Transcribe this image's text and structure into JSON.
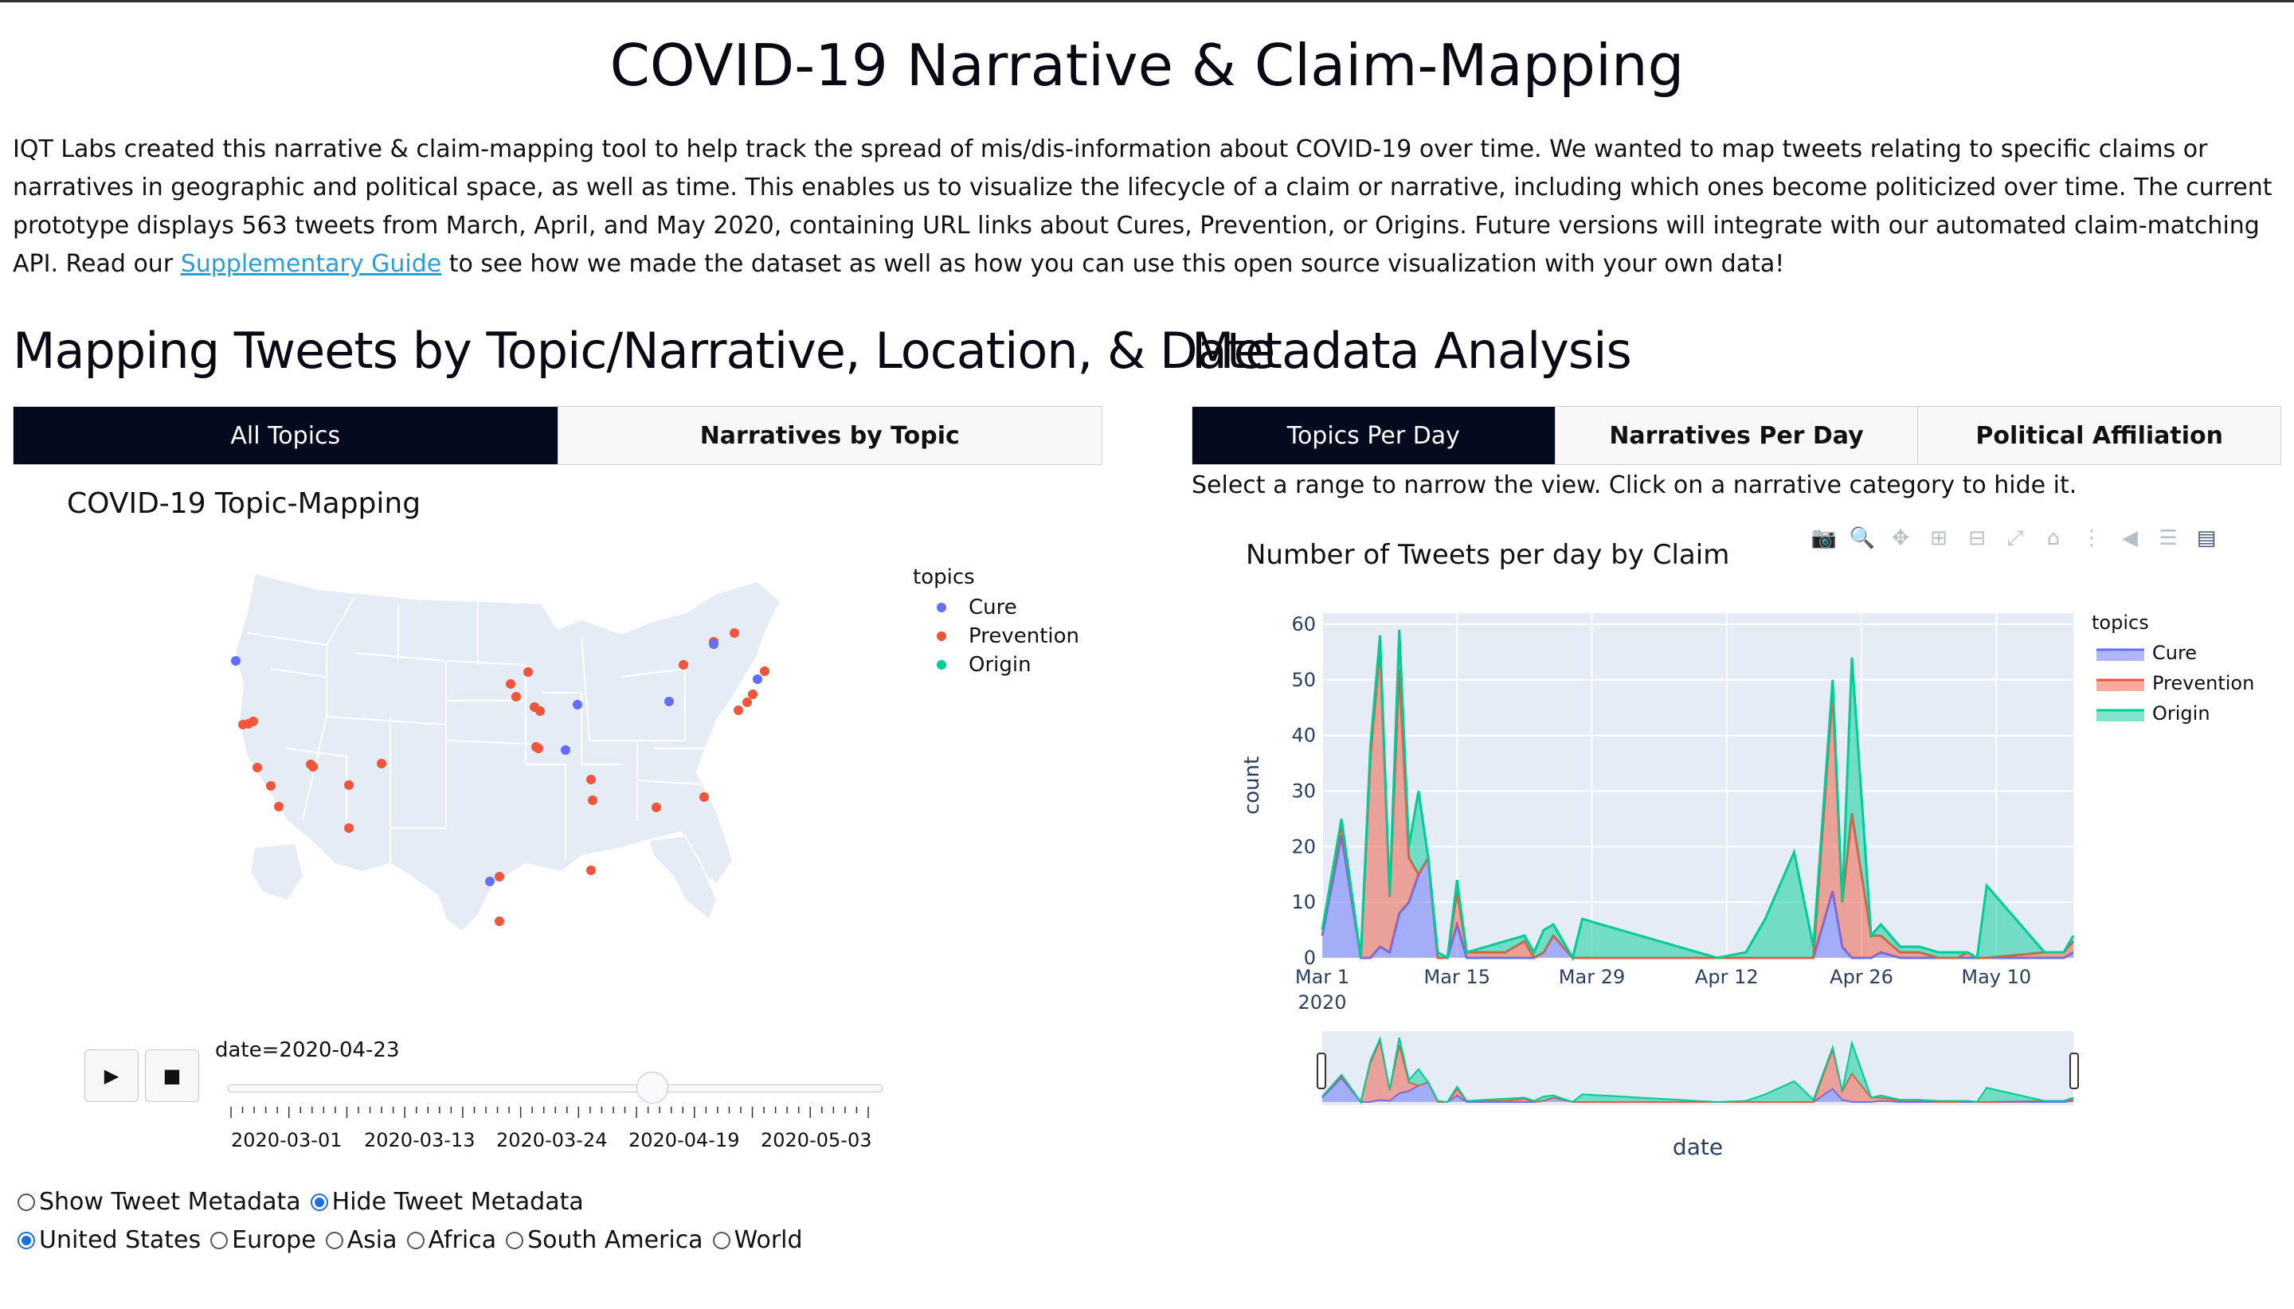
{
  "page": {
    "title": "COVID-19 Narrative & Claim-Mapping",
    "intro_before_link": "IQT Labs created this narrative & claim-mapping tool to help track the spread of mis/dis-information about COVID-19 over time. We wanted to map tweets relating to specific claims or narratives in geographic and political space, as well as time. This enables us to visualize the lifecycle of a claim or narrative, including which ones become politicized over time. The current prototype displays 563 tweets from March, April, and May 2020, containing URL links about Cures, Prevention, or Origins. Future versions will integrate with our automated claim-matching API. Read our ",
    "intro_link": "Supplementary Guide",
    "intro_after_link": " to see how we made the dataset as well as how you can use this open source visualization with your own data!"
  },
  "left": {
    "heading": "Mapping Tweets by Topic/Narrative, Location, & Date",
    "tabs": [
      "All Topics",
      "Narratives by Topic"
    ],
    "map_title": "COVID-19 Topic-Mapping",
    "legend_title": "topics",
    "legend": [
      "Cure",
      "Prevention",
      "Origin"
    ],
    "slider": {
      "current_label": "date=2020-04-23",
      "position": 0.65,
      "ticks": [
        "2020-03-01",
        "2020-03-13",
        "2020-03-24",
        "2020-04-19",
        "2020-05-03"
      ]
    },
    "play_icon": "play-icon",
    "stop_icon": "stop-icon",
    "metadata_options": [
      {
        "label": "Show Tweet Metadata",
        "checked": false
      },
      {
        "label": "Hide Tweet Metadata",
        "checked": true
      }
    ],
    "region_options": [
      {
        "label": "United States",
        "checked": true
      },
      {
        "label": "Europe",
        "checked": false
      },
      {
        "label": "Asia",
        "checked": false
      },
      {
        "label": "Africa",
        "checked": false
      },
      {
        "label": "South America",
        "checked": false
      },
      {
        "label": "World",
        "checked": false
      }
    ]
  },
  "right": {
    "heading": "Metadata Analysis",
    "tabs": [
      "Topics Per Day",
      "Narratives Per Day",
      "Political Affiliation"
    ],
    "instruction": "Select a range to narrow the view. Click on a narrative category to hide it.",
    "modebar_icons": [
      "camera-icon",
      "zoom-icon",
      "pan-icon",
      "zoom-in-icon",
      "zoom-out-icon",
      "autoscale-icon",
      "home-icon",
      "spike-lines-icon",
      "hover-closest-icon",
      "hover-compare-icon",
      "plotly-logo-icon"
    ]
  },
  "colors": {
    "cure": "#636efa",
    "prevention": "#ef553b",
    "origin": "#00cc96",
    "tab_active": "#050b1f",
    "link": "#2a9fd6",
    "plot_bg": "#e5ecf6"
  },
  "chart_data": {
    "type": "area",
    "title": "Number of Tweets per day by Claim",
    "xlabel": "date",
    "ylabel": "count",
    "ylim": [
      0,
      62
    ],
    "yticks": [
      0,
      10,
      20,
      30,
      40,
      50,
      60
    ],
    "xticks": [
      "Mar 1\n2020",
      "Mar 15",
      "Mar 29",
      "Apr 12",
      "Apr 26",
      "May 10"
    ],
    "xrange": [
      "2020-03-01",
      "2020-05-18"
    ],
    "legend_title": "topics",
    "legend_position": "top-right",
    "grid": true,
    "stacked": true,
    "range_slider": true,
    "x": [
      "2020-03-01",
      "2020-03-03",
      "2020-03-05",
      "2020-03-06",
      "2020-03-07",
      "2020-03-08",
      "2020-03-09",
      "2020-03-10",
      "2020-03-11",
      "2020-03-12",
      "2020-03-13",
      "2020-03-14",
      "2020-03-15",
      "2020-03-16",
      "2020-03-18",
      "2020-03-20",
      "2020-03-22",
      "2020-03-23",
      "2020-03-24",
      "2020-03-25",
      "2020-03-27",
      "2020-03-28",
      "2020-04-11",
      "2020-04-14",
      "2020-04-16",
      "2020-04-19",
      "2020-04-21",
      "2020-04-23",
      "2020-04-24",
      "2020-04-25",
      "2020-04-27",
      "2020-04-28",
      "2020-04-30",
      "2020-05-02",
      "2020-05-04",
      "2020-05-06",
      "2020-05-07",
      "2020-05-08",
      "2020-05-09",
      "2020-05-15",
      "2020-05-17",
      "2020-05-18"
    ],
    "series": [
      {
        "name": "Cure",
        "values": [
          4,
          22,
          0,
          0,
          2,
          1,
          8,
          10,
          15,
          18,
          0,
          0,
          6,
          0,
          0,
          0,
          0,
          0,
          1,
          4,
          0,
          0,
          0,
          0,
          0,
          0,
          0,
          12,
          2,
          0,
          0,
          1,
          0,
          0,
          0,
          0,
          0,
          0,
          0,
          0,
          0,
          1
        ]
      },
      {
        "name": "Prevention",
        "values": [
          1,
          2,
          0,
          36,
          54,
          10,
          44,
          8,
          0,
          0,
          0,
          0,
          6,
          1,
          1,
          1,
          3,
          0,
          0,
          0,
          0,
          0,
          0,
          0,
          0,
          0,
          0,
          36,
          8,
          26,
          4,
          3,
          1,
          1,
          0,
          0,
          1,
          0,
          0,
          1,
          1,
          2
        ]
      },
      {
        "name": "Origin",
        "values": [
          0,
          1,
          0,
          2,
          2,
          0,
          7,
          2,
          15,
          0,
          1,
          0,
          2,
          0,
          1,
          2,
          1,
          1,
          4,
          2,
          0,
          7,
          0,
          1,
          7,
          19,
          2,
          2,
          0,
          28,
          0,
          2,
          1,
          1,
          1,
          1,
          0,
          0,
          13,
          0,
          0,
          1
        ]
      }
    ]
  }
}
